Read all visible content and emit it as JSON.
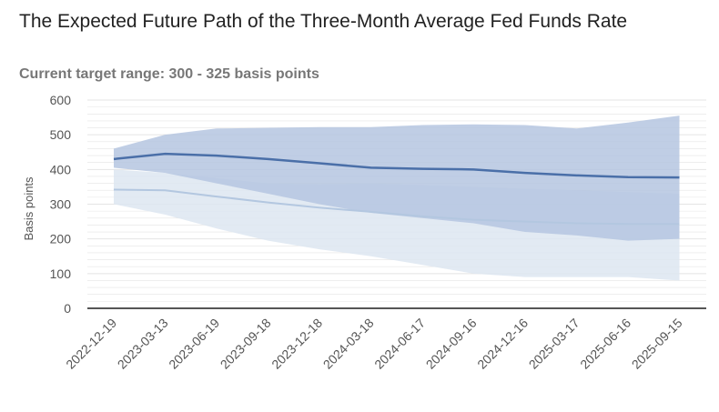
{
  "chart_data": {
    "type": "area",
    "title": "The Expected Future Path of the Three-Month Average Fed Funds Rate",
    "subtitle": "Current target range: 300 - 325 basis points",
    "xlabel": "",
    "ylabel": "Basis points",
    "ylim": [
      0,
      600
    ],
    "yticks": [
      0,
      100,
      200,
      300,
      400,
      500,
      600
    ],
    "grid": true,
    "x": [
      "2022-12-19",
      "2023-03-13",
      "2023-06-19",
      "2023-09-18",
      "2023-12-18",
      "2024-03-18",
      "2024-06-17",
      "2024-09-16",
      "2024-12-16",
      "2025-03-17",
      "2025-06-16",
      "2025-09-15"
    ],
    "series": [
      {
        "name": "",
        "role": "light-band-upper",
        "values": [
          400,
          390,
          375,
          360,
          357,
          360,
          355,
          350,
          345,
          340,
          335,
          330
        ]
      },
      {
        "name": "",
        "role": "light-band-lower",
        "values": [
          300,
          270,
          230,
          195,
          170,
          150,
          125,
          100,
          90,
          90,
          90,
          80
        ]
      },
      {
        "name": "",
        "role": "light-line",
        "values": [
          342,
          340,
          322,
          305,
          290,
          278,
          265,
          255,
          250,
          245,
          243,
          243
        ]
      },
      {
        "name": "",
        "role": "dark-band-upper",
        "values": [
          460,
          500,
          518,
          520,
          522,
          522,
          528,
          530,
          528,
          518,
          535,
          555
        ]
      },
      {
        "name": "",
        "role": "dark-band-lower",
        "values": [
          405,
          390,
          360,
          330,
          300,
          275,
          260,
          245,
          220,
          210,
          195,
          200
        ]
      },
      {
        "name": "",
        "role": "dark-line",
        "values": [
          430,
          445,
          440,
          430,
          418,
          405,
          402,
          400,
          390,
          383,
          378,
          377
        ]
      }
    ],
    "colors": {
      "light_band": "#dde6f1",
      "light_line": "#b3c7e0",
      "dark_band": "#b5c6e0",
      "dark_line": "#4a6fa8",
      "grid": "#e4e4e4",
      "axis": "#555555"
    }
  }
}
